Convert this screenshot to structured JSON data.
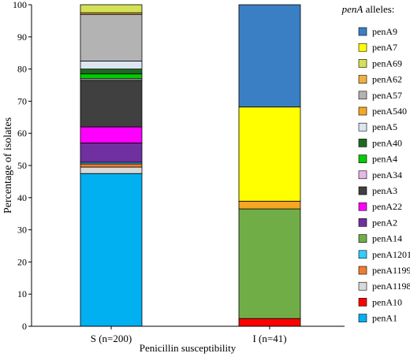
{
  "chart_data": {
    "type": "bar",
    "stacked": true,
    "ylabel": "Percentage of isolates",
    "xlabel": "Penicillin susceptibility",
    "ylim": [
      0,
      100
    ],
    "yticks": [
      0,
      10,
      20,
      30,
      40,
      50,
      60,
      70,
      80,
      90,
      100
    ],
    "grid": false,
    "legend_title_italic": "penA",
    "legend_title_rest": " alleles:",
    "legend_placement": "right",
    "categories": [
      "S (n=200)",
      "I (n=41)"
    ],
    "series": [
      {
        "name": "penA1",
        "color": "#00b0f0",
        "values": [
          47.5,
          0
        ]
      },
      {
        "name": "penA10",
        "color": "#ff0000",
        "values": [
          0,
          2.4
        ]
      },
      {
        "name": "penA1198",
        "color": "#d9d9d9",
        "values": [
          2.0,
          0
        ]
      },
      {
        "name": "penA1199",
        "color": "#ed7d31",
        "values": [
          1.0,
          0
        ]
      },
      {
        "name": "penA1201",
        "color": "#33ccff",
        "values": [
          0.5,
          0
        ]
      },
      {
        "name": "penA14",
        "color": "#70ad47",
        "values": [
          0,
          34.1
        ]
      },
      {
        "name": "penA2",
        "color": "#7030a0",
        "values": [
          6.0,
          0
        ]
      },
      {
        "name": "penA22",
        "color": "#ff00ff",
        "values": [
          5.0,
          0
        ]
      },
      {
        "name": "penA3",
        "color": "#404040",
        "values": [
          14.5,
          0
        ]
      },
      {
        "name": "penA34",
        "color": "#e6b8e6",
        "values": [
          0.5,
          0
        ]
      },
      {
        "name": "penA4",
        "color": "#00cc00",
        "values": [
          1.5,
          0
        ]
      },
      {
        "name": "penA40",
        "color": "#1e6b1e",
        "values": [
          1.5,
          0
        ]
      },
      {
        "name": "penA5",
        "color": "#dce6f2",
        "values": [
          2.5,
          0
        ]
      },
      {
        "name": "penA540",
        "color": "#f5a623",
        "values": [
          0,
          2.4
        ]
      },
      {
        "name": "penA57",
        "color": "#b3b3b3",
        "values": [
          14.5,
          0
        ]
      },
      {
        "name": "penA62",
        "color": "#f0b040",
        "values": [
          0.5,
          0
        ]
      },
      {
        "name": "penA69",
        "color": "#d4e157",
        "values": [
          0,
          0
        ]
      },
      {
        "name": "penA7",
        "color": "#ffff00",
        "values": [
          0,
          29.3
        ]
      },
      {
        "name": "penA9",
        "color": "#3a7fc4",
        "values": [
          0,
          31.8
        ]
      }
    ],
    "s_top_extra": {
      "name": "penA69",
      "color": "#d4e157",
      "value": 2.5
    }
  }
}
